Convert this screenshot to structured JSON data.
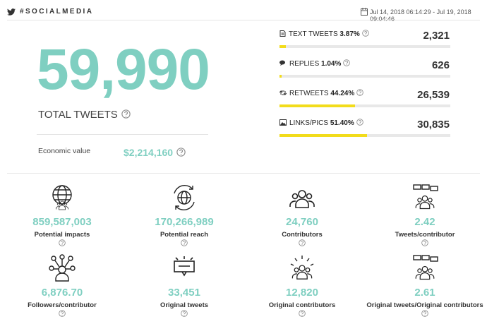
{
  "header": {
    "title": "#SOCIALMEDIA",
    "date_range": "Jul 14, 2018 06:14:29 - Jul 19, 2018 09:04:46"
  },
  "summary": {
    "total": "59,990",
    "total_label": "TOTAL TWEETS",
    "economic_label": "Economic value",
    "economic_value": "$2,214,160"
  },
  "breakdown": [
    {
      "label": "TEXT TWEETS",
      "percent": 3.87,
      "percent_label": "3.87%",
      "count": "2,321"
    },
    {
      "label": "REPLIES",
      "percent": 1.04,
      "percent_label": "1.04%",
      "count": "626"
    },
    {
      "label": "RETWEETS",
      "percent": 44.24,
      "percent_label": "44.24%",
      "count": "26,539"
    },
    {
      "label": "LINKS/PICS",
      "percent": 51.4,
      "percent_label": "51.40%",
      "count": "30,835"
    }
  ],
  "metrics": [
    {
      "value": "859,587,003",
      "label": "Potential impacts"
    },
    {
      "value": "170,266,989",
      "label": "Potential reach"
    },
    {
      "value": "24,760",
      "label": "Contributors"
    },
    {
      "value": "2.42",
      "label": "Tweets/contributor"
    },
    {
      "value": "6,876.70",
      "label": "Followers/contributor"
    },
    {
      "value": "33,451",
      "label": "Original tweets"
    },
    {
      "value": "12,820",
      "label": "Original contributors"
    },
    {
      "value": "2.61",
      "label": "Original tweets/Original contributors"
    }
  ]
}
